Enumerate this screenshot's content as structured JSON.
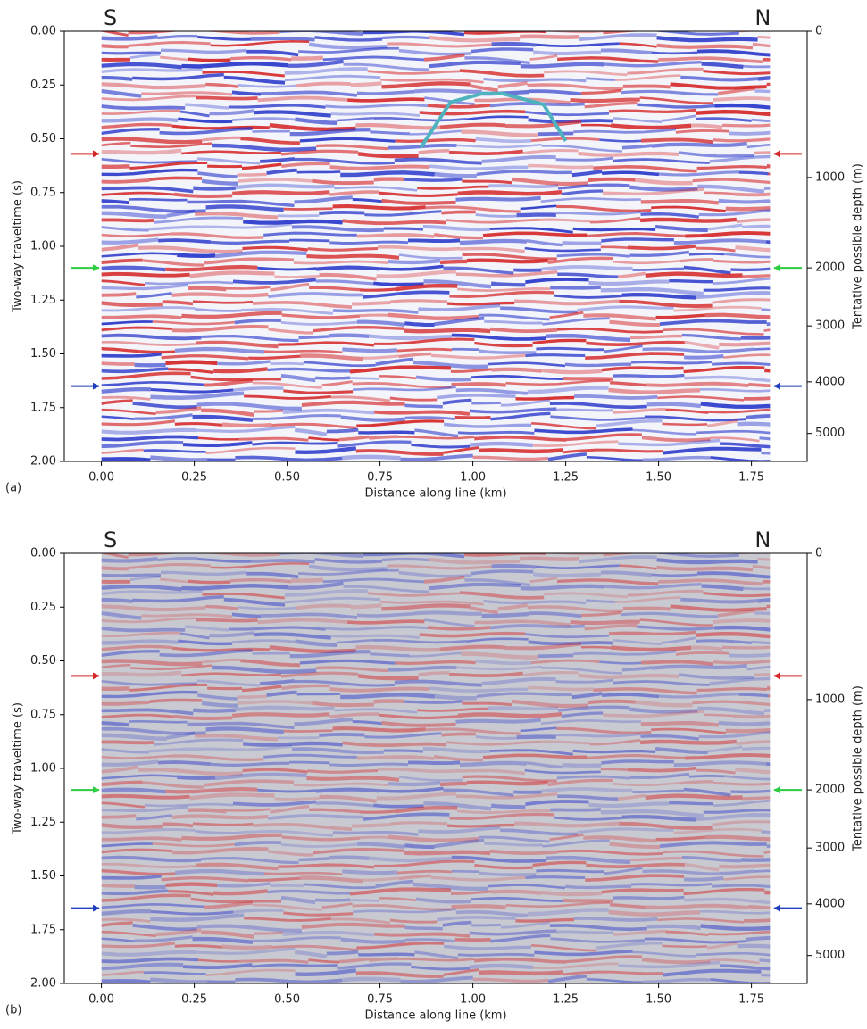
{
  "chart_data": [
    {
      "type": "seismic",
      "label": "(a)",
      "left_end": "S",
      "right_end": "N",
      "x_label": "Distance along line (km)",
      "y_label": "Two-way traveltime (s)",
      "y2_label": "Tentative possible depth (m)",
      "xlim": [
        -0.1,
        1.9
      ],
      "ylim": [
        2,
        0
      ],
      "extent": [
        0,
        1.8
      ],
      "faded": false,
      "xticks": [
        {
          "value": 0,
          "label": "0.00"
        },
        {
          "value": 0.25,
          "label": "0.25"
        },
        {
          "value": 0.5,
          "label": "0.50"
        },
        {
          "value": 0.75,
          "label": "0.75"
        },
        {
          "value": 1,
          "label": "1.00"
        },
        {
          "value": 1.25,
          "label": "1.25"
        },
        {
          "value": 1.5,
          "label": "1.50"
        },
        {
          "value": 1.75,
          "label": "1.75"
        }
      ],
      "yticks": [
        {
          "value": 0,
          "label": "0.00"
        },
        {
          "value": 0.25,
          "label": "0.25"
        },
        {
          "value": 0.5,
          "label": "0.50"
        },
        {
          "value": 0.75,
          "label": "0.75"
        },
        {
          "value": 1,
          "label": "1.00"
        },
        {
          "value": 1.25,
          "label": "1.25"
        },
        {
          "value": 1.5,
          "label": "1.50"
        },
        {
          "value": 1.75,
          "label": "1.75"
        },
        {
          "value": 2,
          "label": "2.00"
        }
      ],
      "depth_ticks": [
        {
          "depth": 0,
          "twt": 0
        },
        {
          "depth": 1000,
          "twt": 0.68
        },
        {
          "depth": 2000,
          "twt": 1.1
        },
        {
          "depth": 3000,
          "twt": 1.37
        },
        {
          "depth": 4000,
          "twt": 1.63
        },
        {
          "depth": 5000,
          "twt": 1.87
        }
      ],
      "markers": [
        {
          "y": 0.57,
          "color": "#d62728"
        },
        {
          "y": 1.1,
          "color": "#2ecc40"
        },
        {
          "y": 1.65,
          "color": "#1f3fbf"
        }
      ],
      "overlay": {
        "x": [
          0.86,
          0.94,
          1.025,
          1.08,
          1.19,
          1.25
        ],
        "y": [
          0.54,
          0.33,
          0.29,
          0.29,
          0.34,
          0.51
        ],
        "color": "#4fb3bf"
      }
    },
    {
      "type": "seismic",
      "label": "(b)",
      "left_end": "S",
      "right_end": "N",
      "x_label": "Distance along line (km)",
      "y_label": "Two-way traveltime (s)",
      "y2_label": "Tentative possible depth (m)",
      "xlim": [
        -0.1,
        1.9
      ],
      "ylim": [
        2,
        0
      ],
      "extent": [
        0,
        1.8
      ],
      "faded": true,
      "xticks": [
        {
          "value": 0,
          "label": "0.00"
        },
        {
          "value": 0.25,
          "label": "0.25"
        },
        {
          "value": 0.5,
          "label": "0.50"
        },
        {
          "value": 0.75,
          "label": "0.75"
        },
        {
          "value": 1,
          "label": "1.00"
        },
        {
          "value": 1.25,
          "label": "1.25"
        },
        {
          "value": 1.5,
          "label": "1.50"
        },
        {
          "value": 1.75,
          "label": "1.75"
        }
      ],
      "yticks": [
        {
          "value": 0,
          "label": "0.00"
        },
        {
          "value": 0.25,
          "label": "0.25"
        },
        {
          "value": 0.5,
          "label": "0.50"
        },
        {
          "value": 0.75,
          "label": "0.75"
        },
        {
          "value": 1,
          "label": "1.00"
        },
        {
          "value": 1.25,
          "label": "1.25"
        },
        {
          "value": 1.5,
          "label": "1.50"
        },
        {
          "value": 1.75,
          "label": "1.75"
        },
        {
          "value": 2,
          "label": "2.00"
        }
      ],
      "depth_ticks": [
        {
          "depth": 0,
          "twt": 0
        },
        {
          "depth": 1000,
          "twt": 0.68
        },
        {
          "depth": 2000,
          "twt": 1.1
        },
        {
          "depth": 3000,
          "twt": 1.37
        },
        {
          "depth": 4000,
          "twt": 1.63
        },
        {
          "depth": 5000,
          "twt": 1.87
        }
      ],
      "markers": [
        {
          "y": 0.57,
          "color": "#d62728"
        },
        {
          "y": 1.1,
          "color": "#2ecc40"
        },
        {
          "y": 1.65,
          "color": "#1f3fbf"
        }
      ]
    }
  ]
}
